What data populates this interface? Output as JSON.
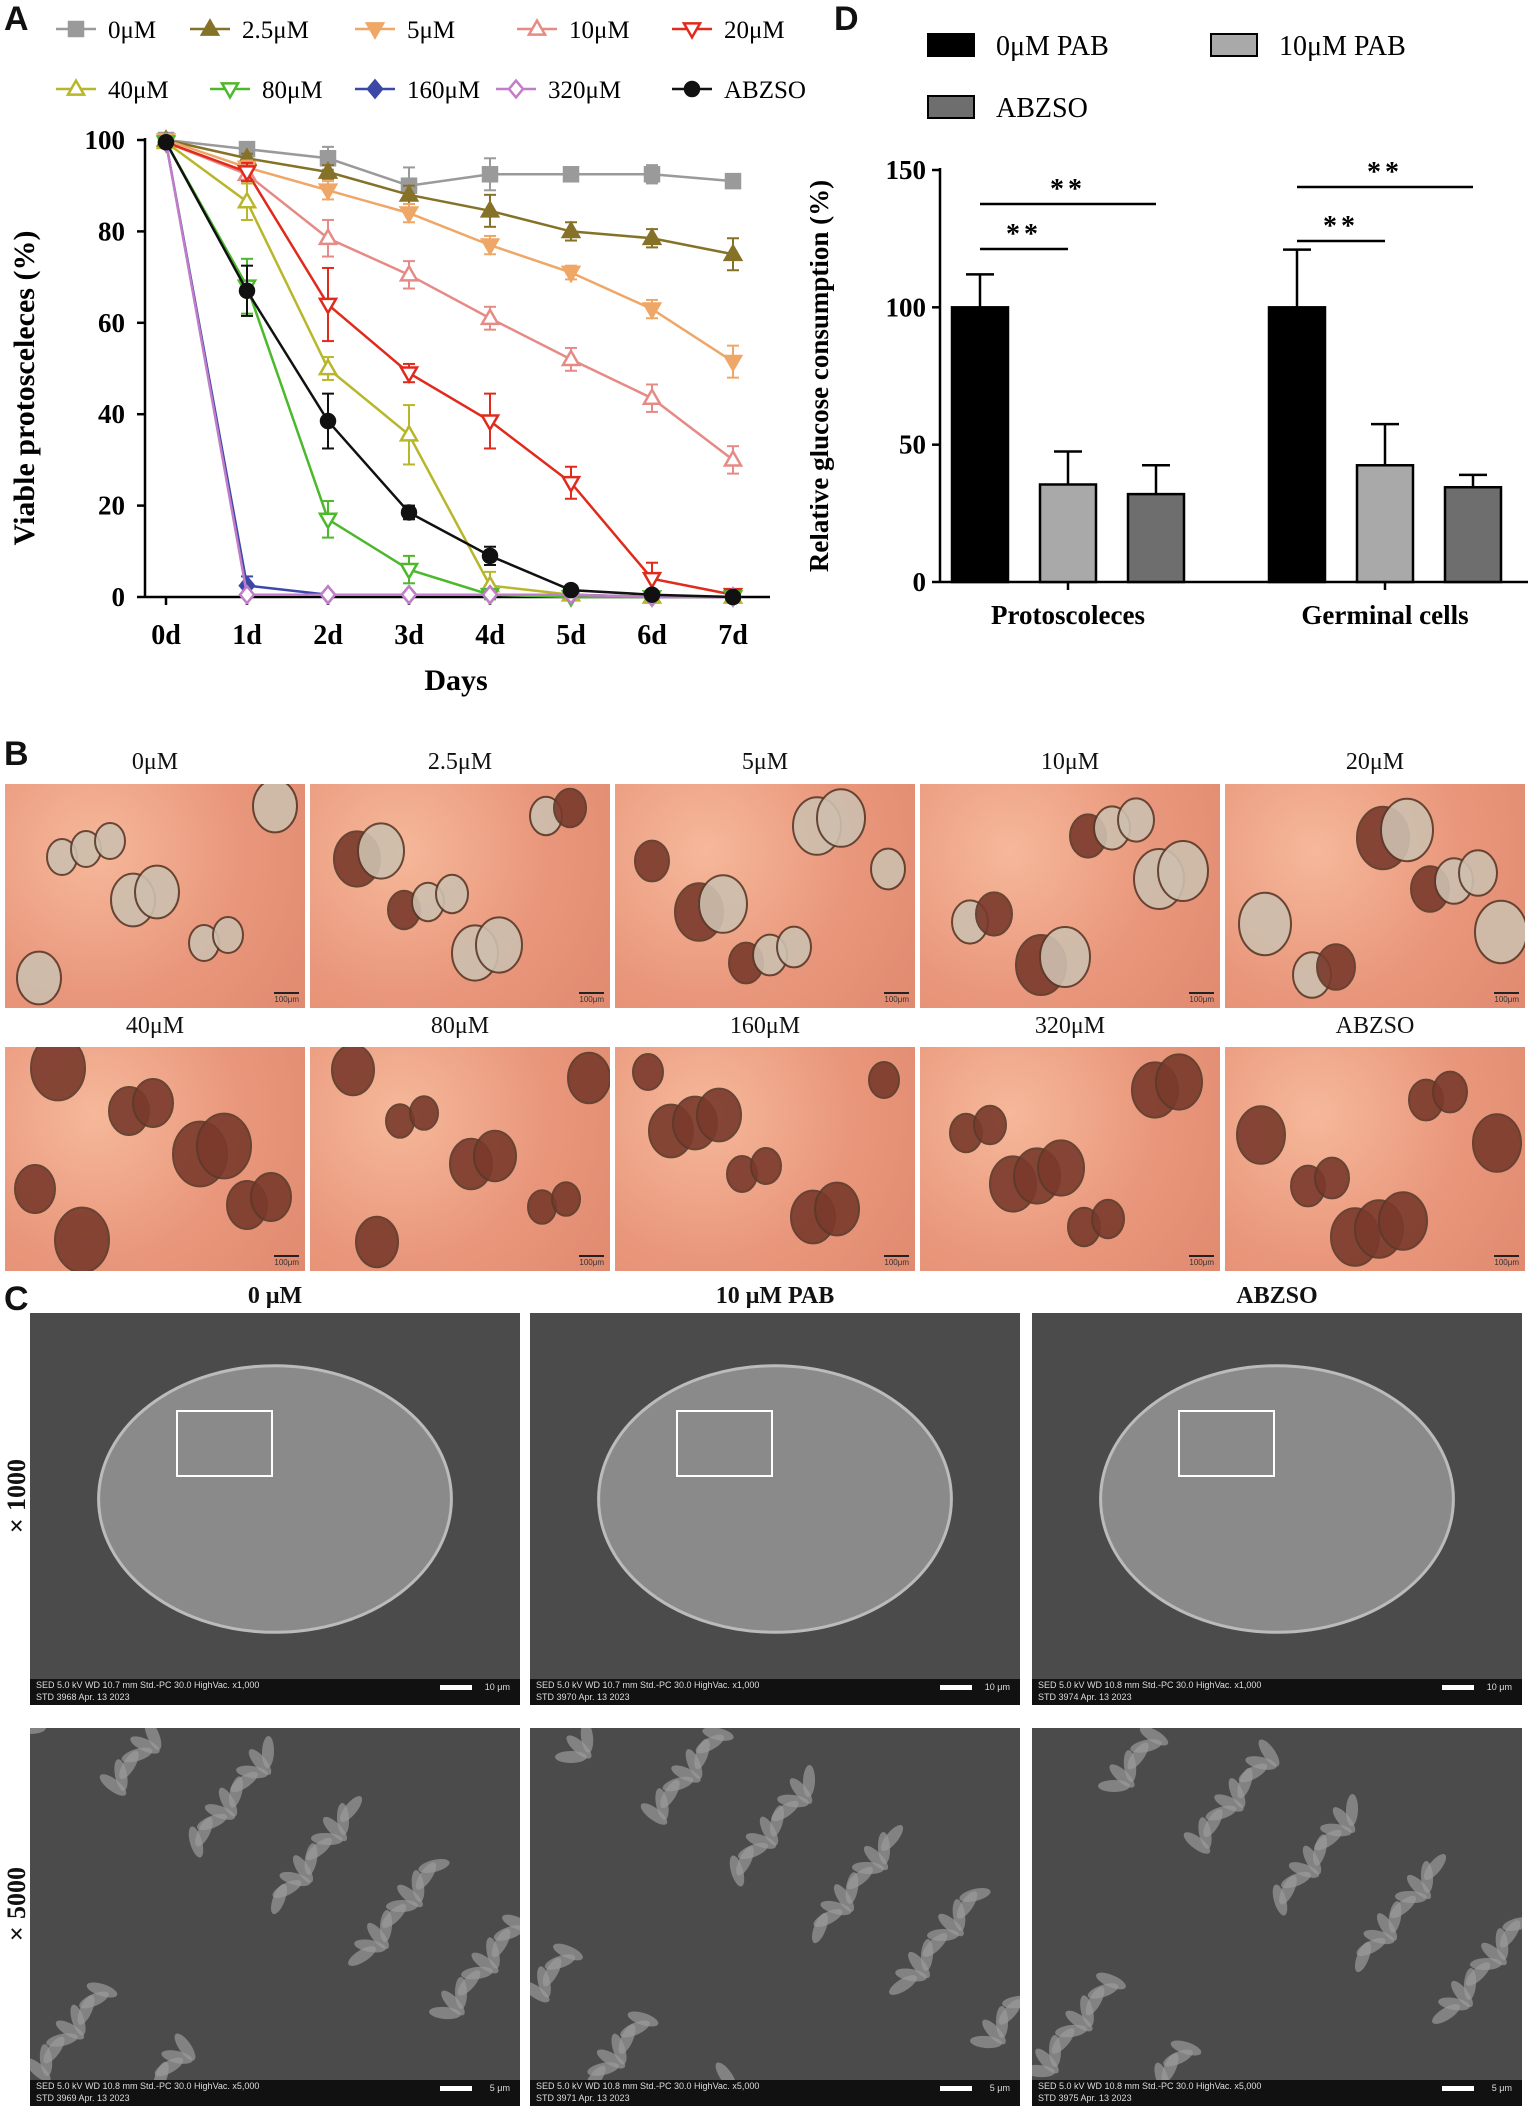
{
  "panels": {
    "a": "A",
    "b": "B",
    "c": "C",
    "d": "D"
  },
  "chart_data": [
    {
      "type": "line",
      "panel": "A",
      "xlabel": "Days",
      "ylabel": "Viable protosceleces (%)",
      "categories": [
        "0d",
        "1d",
        "2d",
        "3d",
        "4d",
        "5d",
        "6d",
        "7d"
      ],
      "ylim": [
        0,
        100
      ],
      "yticks": [
        0,
        20,
        40,
        60,
        80,
        100
      ],
      "legend_position": "top",
      "series": [
        {
          "name": "0μM",
          "color": "#9a9a9a",
          "marker": "square",
          "x": [
            0,
            1,
            2,
            3,
            4,
            5,
            6,
            7
          ],
          "values": [
            100,
            98,
            96,
            90,
            92.5,
            92.5,
            92.5,
            91
          ],
          "errors": [
            0,
            1,
            2.5,
            4,
            3.5,
            1,
            2,
            1
          ]
        },
        {
          "name": "2.5μM",
          "color": "#857228",
          "marker": "triangle-up",
          "x": [
            0,
            1,
            2,
            3,
            4,
            5,
            6,
            7
          ],
          "values": [
            100,
            96,
            93,
            88,
            84.5,
            80,
            78.5,
            75
          ],
          "errors": [
            0,
            1,
            1.5,
            2,
            3.5,
            2,
            2,
            3.5
          ]
        },
        {
          "name": "5μM",
          "color": "#eea766",
          "marker": "triangle-down",
          "x": [
            0,
            1,
            2,
            3,
            4,
            5,
            6,
            7
          ],
          "values": [
            100,
            94,
            89,
            84,
            77,
            71,
            63,
            51.5
          ],
          "errors": [
            0,
            1.5,
            2,
            2,
            2,
            1.5,
            2,
            3.5
          ]
        },
        {
          "name": "10μM",
          "color": "#e68a86",
          "marker": "triangle-up-open",
          "x": [
            0,
            1,
            2,
            3,
            4,
            5,
            6,
            7
          ],
          "values": [
            99.5,
            92.5,
            78.5,
            70.5,
            61,
            52,
            43.5,
            30
          ],
          "errors": [
            0,
            2,
            4,
            3,
            2.5,
            2.5,
            3,
            3
          ]
        },
        {
          "name": "20μM",
          "color": "#e02a1c",
          "marker": "triangle-down-open",
          "x": [
            0,
            1,
            2,
            3,
            4,
            5,
            6,
            7
          ],
          "values": [
            99.5,
            93,
            64,
            49,
            38.5,
            25,
            4,
            0.5
          ],
          "errors": [
            0,
            2,
            8,
            2,
            6,
            3.5,
            3.5,
            0.5
          ]
        },
        {
          "name": "40μM",
          "color": "#b8b62a",
          "marker": "triangle-up-open",
          "x": [
            0,
            1,
            2,
            3,
            4,
            5,
            6,
            7
          ],
          "values": [
            99.5,
            86.5,
            50,
            35.5,
            2.5,
            0.5,
            0,
            0
          ],
          "errors": [
            0,
            4,
            2.5,
            6.5,
            3,
            0.5,
            0,
            0
          ]
        },
        {
          "name": "80μM",
          "color": "#4cb82b",
          "marker": "triangle-down-open",
          "x": [
            0,
            1,
            2,
            3,
            4,
            5,
            6,
            7
          ],
          "values": [
            99.5,
            68,
            17,
            6,
            0.5,
            0,
            0,
            0
          ],
          "errors": [
            0,
            6,
            4,
            3,
            1,
            0,
            0,
            0
          ]
        },
        {
          "name": "160μM",
          "color": "#3b48a8",
          "marker": "diamond",
          "x": [
            0,
            1,
            2,
            3,
            4,
            5,
            6,
            7
          ],
          "values": [
            99.5,
            2.5,
            0.5,
            0.5,
            0.5,
            0.5,
            0,
            0
          ],
          "errors": [
            0,
            2,
            0,
            0,
            0,
            0,
            0,
            0
          ]
        },
        {
          "name": "320μM",
          "color": "#c27dc8",
          "marker": "diamond-open",
          "x": [
            0,
            1,
            2,
            3,
            4,
            5,
            6,
            7
          ],
          "values": [
            99.5,
            0.5,
            0.5,
            0.5,
            0.5,
            0.5,
            0,
            0
          ],
          "errors": [
            0,
            0,
            0,
            0,
            0,
            0,
            0,
            0
          ]
        },
        {
          "name": "ABZSO",
          "color": "#111111",
          "marker": "circle",
          "x": [
            0,
            1,
            2,
            3,
            4,
            5,
            6,
            7
          ],
          "values": [
            99.5,
            67,
            38.5,
            18.5,
            9,
            1.5,
            0.5,
            0
          ],
          "errors": [
            0,
            5.5,
            6,
            1.5,
            2,
            0.5,
            0,
            0
          ]
        }
      ]
    },
    {
      "type": "bar",
      "panel": "D",
      "ylabel": "Relative glucose consumption (%)",
      "categories": [
        "Protoscoleces",
        "Germinal cells"
      ],
      "ylim": [
        0,
        150
      ],
      "yticks": [
        0,
        50,
        100,
        150
      ],
      "legend_position": "top",
      "series": [
        {
          "name": "0μM PAB",
          "color": "#000000",
          "values": [
            100,
            100
          ],
          "errors": [
            12,
            21
          ]
        },
        {
          "name": "10μM PAB",
          "color": "#a9a9a9",
          "values": [
            35.5,
            42.5
          ],
          "errors": [
            12,
            15
          ]
        },
        {
          "name": "ABZSO",
          "color": "#6e6e6e",
          "values": [
            32,
            34.5
          ],
          "errors": [
            10.5,
            4.5
          ]
        }
      ],
      "annotations": [
        "**",
        "**",
        "**",
        "**"
      ]
    }
  ],
  "panel_b": {
    "row1": [
      "0μM",
      "2.5μM",
      "5μM",
      "10μM",
      "20μM"
    ],
    "row2": [
      "40μM",
      "80μM",
      "160μM",
      "320μM",
      "ABZSO"
    ],
    "scale": "100μm"
  },
  "panel_c": {
    "columns": [
      "0 μM",
      "10 μM PAB",
      "ABZSO"
    ],
    "rows": [
      "×1000",
      "×5000"
    ],
    "sem_info": [
      [
        "SED 5.0 kV WD 10.7 mm Std.-PC 30.0 HighVac. x1,000",
        "STD 3968 Apr. 13 2023",
        "10 μm"
      ],
      [
        "SED 5.0 kV WD 10.7 mm Std.-PC 30.0 HighVac. x1,000",
        "STD 3970 Apr. 13 2023",
        "10 μm"
      ],
      [
        "SED 5.0 kV WD 10.8 mm Std.-PC 30.0 HighVac. x1,000",
        "STD 3974 Apr. 13 2023",
        "10 μm"
      ],
      [
        "SED 5.0 kV WD 10.8 mm Std.-PC 30.0 HighVac. x5,000",
        "STD 3969 Apr. 13 2023",
        "5 μm"
      ],
      [
        "SED 5.0 kV WD 10.8 mm Std.-PC 30.0 HighVac. x5,000",
        "STD 3971 Apr. 13 2023",
        "5 μm"
      ],
      [
        "SED 5.0 kV WD 10.8 mm Std.-PC 30.0 HighVac. x5,000",
        "STD 3975 Apr. 13 2023",
        "5 μm"
      ]
    ]
  }
}
